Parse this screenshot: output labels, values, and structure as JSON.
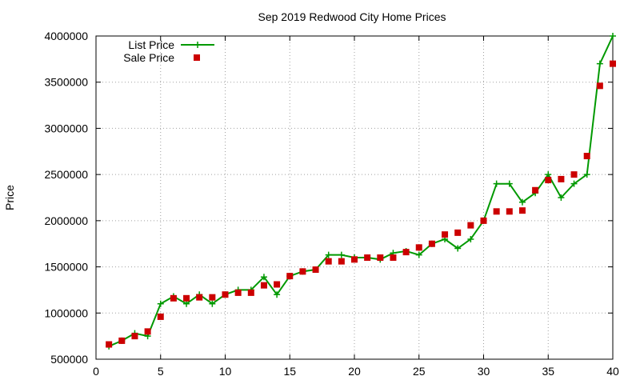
{
  "chart_data": {
    "type": "line",
    "title": "Sep 2019 Redwood City Home Prices",
    "xlabel": "",
    "ylabel": "Price",
    "xlim": [
      0,
      40
    ],
    "ylim": [
      500000,
      4000000
    ],
    "x_ticks": [
      0,
      5,
      10,
      15,
      20,
      25,
      30,
      35,
      40
    ],
    "y_ticks": [
      500000,
      1000000,
      1500000,
      2000000,
      2500000,
      3000000,
      3500000,
      4000000
    ],
    "grid": true,
    "legend_position": "top-left",
    "series": [
      {
        "name": "List Price",
        "style": "line+cross",
        "color": "#009900",
        "x": [
          1,
          2,
          3,
          4,
          5,
          6,
          7,
          8,
          9,
          10,
          11,
          12,
          13,
          14,
          15,
          16,
          17,
          18,
          19,
          20,
          21,
          22,
          23,
          24,
          25,
          26,
          27,
          28,
          29,
          30,
          31,
          32,
          33,
          34,
          35,
          36,
          37,
          38,
          39,
          40
        ],
        "values": [
          640000,
          700000,
          780000,
          750000,
          1100000,
          1180000,
          1100000,
          1200000,
          1100000,
          1200000,
          1250000,
          1250000,
          1390000,
          1200000,
          1400000,
          1450000,
          1470000,
          1630000,
          1630000,
          1600000,
          1600000,
          1580000,
          1650000,
          1670000,
          1630000,
          1750000,
          1800000,
          1700000,
          1800000,
          2000000,
          2400000,
          2400000,
          2200000,
          2300000,
          2500000,
          2250000,
          2400000,
          2500000,
          3700000,
          4000000
        ]
      },
      {
        "name": "Sale Price",
        "style": "square-points",
        "color": "#cc0000",
        "x": [
          1,
          2,
          3,
          4,
          5,
          6,
          7,
          8,
          9,
          10,
          11,
          12,
          13,
          14,
          15,
          16,
          17,
          18,
          19,
          20,
          21,
          22,
          23,
          24,
          25,
          26,
          27,
          28,
          29,
          30,
          31,
          32,
          33,
          34,
          35,
          36,
          37,
          38,
          39,
          40
        ],
        "values": [
          660000,
          700000,
          750000,
          800000,
          960000,
          1160000,
          1160000,
          1170000,
          1170000,
          1200000,
          1220000,
          1220000,
          1300000,
          1310000,
          1400000,
          1450000,
          1470000,
          1560000,
          1560000,
          1580000,
          1600000,
          1600000,
          1600000,
          1660000,
          1710000,
          1750000,
          1850000,
          1870000,
          1950000,
          2000000,
          2100000,
          2100000,
          2110000,
          2330000,
          2440000,
          2450000,
          2500000,
          2700000,
          3460000,
          3700000
        ]
      }
    ]
  }
}
